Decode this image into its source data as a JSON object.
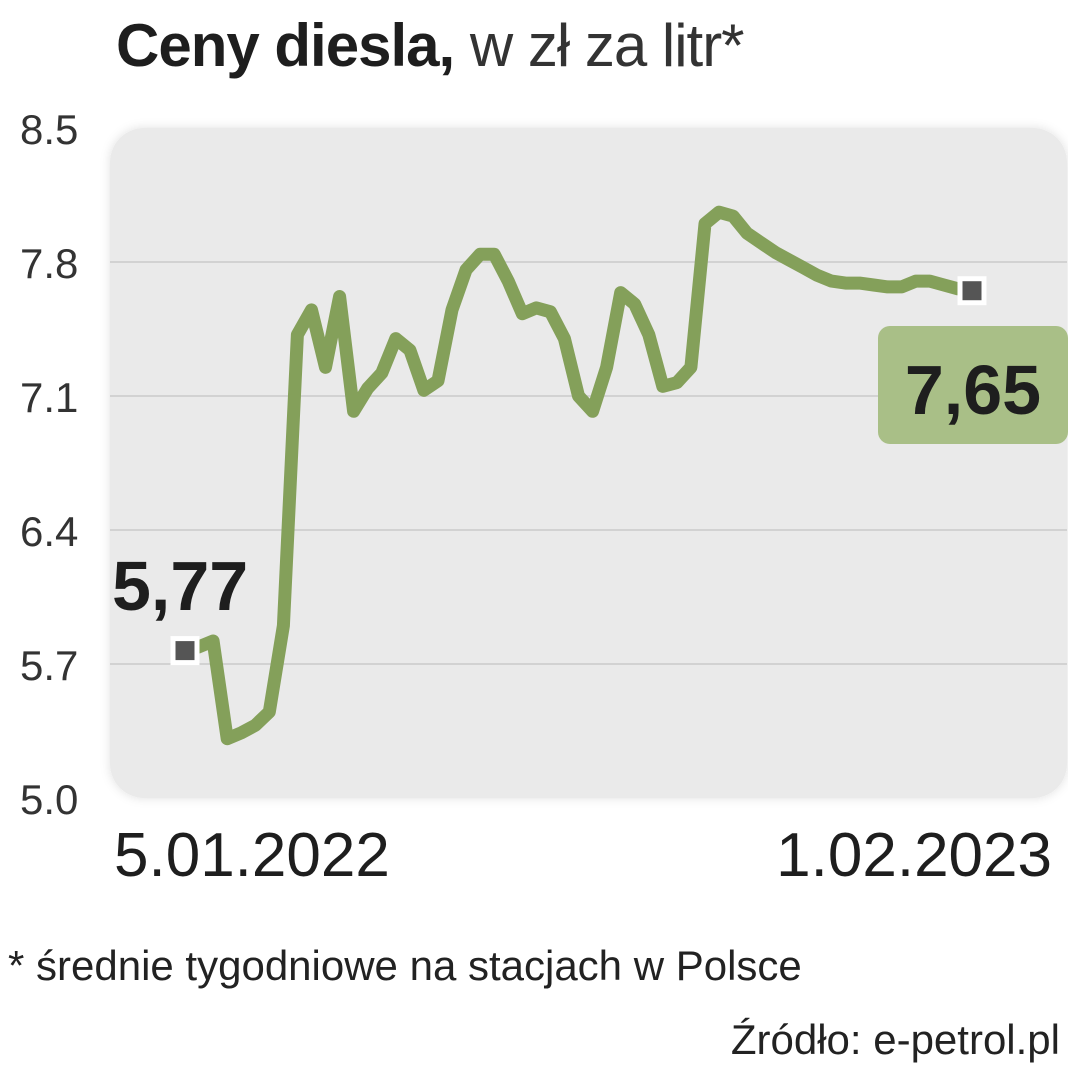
{
  "header": {
    "title_bold": "Ceny diesla,",
    "title_rest": " w zł za litr*"
  },
  "footnote": "* średnie tygodniowe na stacjach w Polsce",
  "source": "Źródło: e-petrol.pl",
  "colors": {
    "line": "#84a05a",
    "label_bg": "#a9bf87",
    "plot_bg": "#eaeaea",
    "grid": "#d2d2d2",
    "text": "#1e1e1e"
  },
  "chart_data": {
    "type": "line",
    "title": "Ceny diesla, w zł za litr*",
    "xlabel": "",
    "ylabel": "",
    "ylim": [
      5.0,
      8.5
    ],
    "yticks": [
      8.5,
      7.8,
      7.1,
      6.4,
      5.7,
      5.0
    ],
    "ytick_labels": [
      "8.5",
      "7.8",
      "7.1",
      "6.4",
      "5.7",
      "5.0"
    ],
    "xtick_labels": [
      "5.01.2022",
      "1.02.2023"
    ],
    "grid": true,
    "series": [
      {
        "x": [
          "2022-01-05",
          "2022-01-12",
          "2022-01-19",
          "2022-01-26",
          "2022-02-02",
          "2022-02-09",
          "2022-02-16",
          "2022-02-23",
          "2022-03-02",
          "2022-03-09",
          "2022-03-16",
          "2022-03-23",
          "2022-03-30",
          "2022-04-06",
          "2022-04-13",
          "2022-04-20",
          "2022-04-27",
          "2022-05-04",
          "2022-05-11",
          "2022-05-18",
          "2022-05-25",
          "2022-06-01",
          "2022-06-08",
          "2022-06-15",
          "2022-06-22",
          "2022-06-29",
          "2022-07-06",
          "2022-07-13",
          "2022-07-20",
          "2022-07-27",
          "2022-08-03",
          "2022-08-10",
          "2022-08-17",
          "2022-08-24",
          "2022-08-31",
          "2022-09-07",
          "2022-09-14",
          "2022-09-21",
          "2022-09-28",
          "2022-10-05",
          "2022-10-12",
          "2022-10-19",
          "2022-10-26",
          "2022-11-02",
          "2022-11-09",
          "2022-11-16",
          "2022-11-23",
          "2022-11-30",
          "2022-12-07",
          "2022-12-14",
          "2022-12-21",
          "2022-12-28",
          "2023-01-04",
          "2023-01-11",
          "2023-01-18",
          "2023-01-25",
          "2023-02-01"
        ],
        "values": [
          5.77,
          5.79,
          5.82,
          5.31,
          5.34,
          5.38,
          5.45,
          5.9,
          7.42,
          7.55,
          7.25,
          7.62,
          7.02,
          7.14,
          7.22,
          7.4,
          7.34,
          7.13,
          7.18,
          7.55,
          7.76,
          7.84,
          7.84,
          7.7,
          7.53,
          7.56,
          7.54,
          7.4,
          7.1,
          7.02,
          7.25,
          7.64,
          7.58,
          7.42,
          7.15,
          7.17,
          7.25,
          8.0,
          8.06,
          8.04,
          7.95,
          7.9,
          7.85,
          7.81,
          7.77,
          7.73,
          7.7,
          7.69,
          7.69,
          7.68,
          7.67,
          7.67,
          7.7,
          7.7,
          7.68,
          7.66,
          7.65
        ]
      }
    ],
    "annotations": [
      {
        "text": "5,77",
        "x": "2022-01-05",
        "value": 5.77
      },
      {
        "text": "7,65",
        "x": "2023-02-01",
        "value": 7.65
      }
    ]
  }
}
